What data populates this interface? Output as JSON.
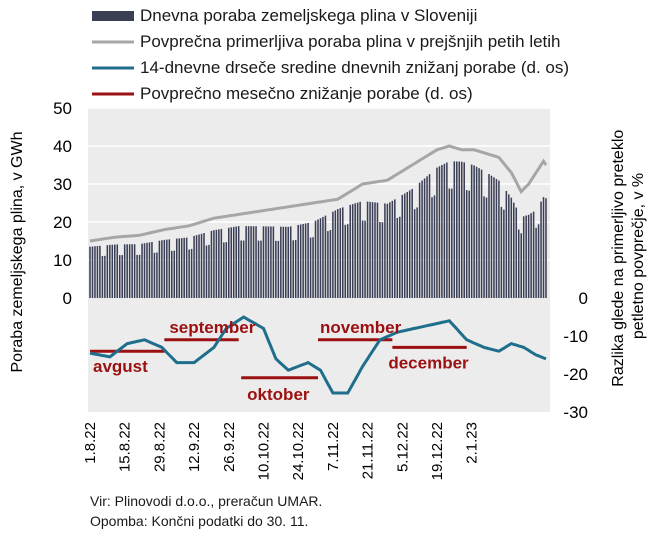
{
  "legend": {
    "daily": "Dnevna poraba zemeljskega plina v Sloveniji",
    "avg": "Povprečna primerljiva poraba plina v prejšnjih petih letih",
    "ma": "14-dnevne drseče sredine dnevnih znižanj porabe (d. os)",
    "monthly": "Povprečno mesečno znižanje porabe (d. os)"
  },
  "footer": {
    "source": "Vir: Plinovodi d.o.o., preračun UMAR.",
    "note": "Opomba: Končni podatki do 30. 11."
  },
  "colors": {
    "daily": "#3a3f55",
    "avg": "#a6a6a6",
    "ma": "#1f6e8c",
    "monthly": "#9b1010",
    "plot_bg": "#ececec"
  },
  "chart_data": {
    "type": "bar+line",
    "ylabel_left": "Poraba zemeljskega plina, v GWh",
    "ylabel_right": "Razlika glede na primerljivo preteklo petletno povprečje, v %",
    "ylim_left": [
      0,
      50
    ],
    "yticks_left": [
      0,
      10,
      20,
      30,
      40,
      50
    ],
    "ylim_right": [
      -30,
      0
    ],
    "yticks_right": [
      0,
      -10,
      -20,
      -30
    ],
    "x_start": "1.8.22",
    "x_end": "2.1.23",
    "xticks": [
      "1.8.22",
      "15.8.22",
      "29.8.22",
      "12.9.22",
      "26.9.22",
      "10.10.22",
      "24.10.22",
      "7.11.22",
      "21.11.22",
      "5.12.22",
      "19.12.22",
      "2.1.23"
    ],
    "avg_anchor_day": [
      0,
      10,
      20,
      30,
      40,
      45,
      50,
      60,
      70,
      80,
      90,
      100,
      110,
      120,
      125,
      130,
      135,
      140,
      145,
      150,
      155,
      160,
      165,
      170,
      174,
      177,
      180,
      183,
      184
    ],
    "avg_values": [
      15,
      16,
      16.5,
      18,
      19,
      20,
      21,
      22,
      23,
      24,
      25,
      26,
      30,
      31,
      33,
      35,
      37,
      39,
      40,
      39,
      39,
      38,
      37,
      33,
      28,
      30,
      33,
      36,
      35
    ],
    "daily_ratio_anchor_day": [
      0,
      20,
      40,
      60,
      80,
      90,
      100,
      110,
      120,
      130,
      140,
      150,
      160,
      170,
      180,
      184
    ],
    "daily_ratio_values": [
      0.9,
      0.86,
      0.84,
      0.86,
      0.78,
      0.8,
      0.9,
      0.85,
      0.8,
      0.82,
      0.88,
      0.92,
      0.87,
      0.8,
      0.7,
      0.75
    ],
    "ma_anchor_day": [
      0,
      8,
      15,
      22,
      29,
      35,
      42,
      50,
      55,
      62,
      70,
      75,
      80,
      84,
      88,
      93,
      98,
      104,
      110,
      117,
      124,
      131,
      138,
      145,
      152,
      159,
      165,
      170,
      175,
      180,
      184
    ],
    "ma_values": [
      -14.5,
      -15.5,
      -12,
      -11,
      -13,
      -17,
      -17,
      -13,
      -8,
      -5,
      -8,
      -16,
      -19,
      -18,
      -17,
      -19,
      -25,
      -25,
      -18,
      -11,
      -9,
      -8,
      -7,
      -6,
      -11,
      -13,
      -14,
      -12,
      -13,
      -15,
      -16
    ],
    "monthly": [
      {
        "label": "avgust",
        "start_day": 0,
        "end_day": 30,
        "value": -14
      },
      {
        "label": "september",
        "start_day": 30,
        "end_day": 60,
        "value": -11
      },
      {
        "label": "oktober",
        "start_day": 61,
        "end_day": 92,
        "value": -21
      },
      {
        "label": "november",
        "start_day": 92,
        "end_day": 122,
        "value": -11
      },
      {
        "label": "december",
        "start_day": 122,
        "end_day": 152,
        "value": -13
      }
    ]
  }
}
